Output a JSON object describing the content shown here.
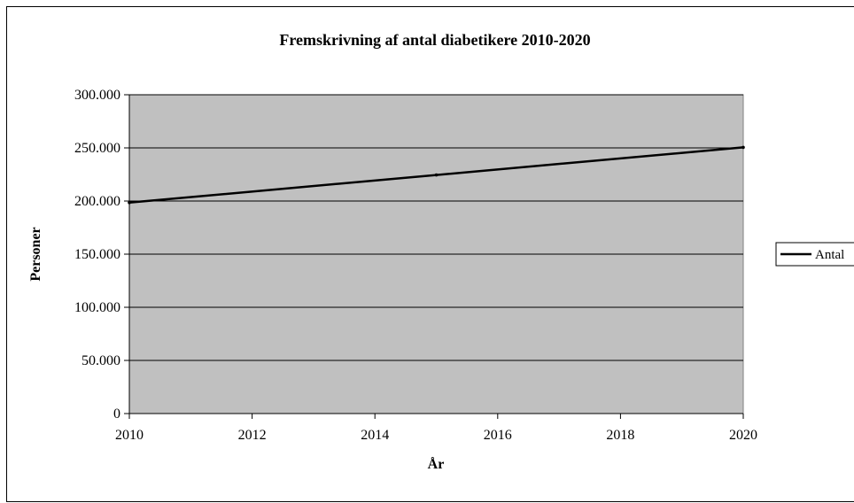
{
  "chart_data": {
    "type": "line",
    "title": "Fremskrivning af antal diabetikere 2010-2020",
    "xlabel": "År",
    "ylabel": "Personer",
    "xlim": [
      2010,
      2020
    ],
    "ylim": [
      0,
      300000
    ],
    "x_ticks": [
      2010,
      2012,
      2014,
      2016,
      2018,
      2020
    ],
    "x_tick_labels": [
      "2010",
      "2012",
      "2014",
      "2016",
      "2018",
      "2020"
    ],
    "y_ticks": [
      0,
      50000,
      100000,
      150000,
      200000,
      250000,
      300000
    ],
    "y_tick_labels": [
      "0",
      "50.000",
      "100.000",
      "150.000",
      "200.000",
      "250.000",
      "300.000"
    ],
    "grid": "horizontal",
    "legend_position": "right",
    "plot_background": "#c0c0c0",
    "series": [
      {
        "name": "Antal",
        "color": "#000000",
        "x": [
          2010,
          2015,
          2020
        ],
        "values": [
          198500,
          224500,
          250500
        ]
      }
    ]
  }
}
